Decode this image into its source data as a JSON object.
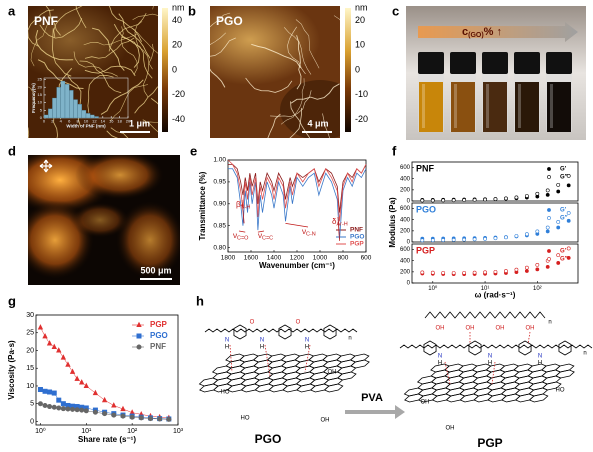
{
  "panels": {
    "a": {
      "label": "a",
      "title": "PNF",
      "colorbar": {
        "unit": "nm",
        "lim": [
          -50,
          50
        ],
        "ticks": [
          40,
          20,
          0,
          -20,
          -40
        ]
      },
      "scale_bar": "1 μm"
    },
    "b": {
      "label": "b",
      "title": "PGO",
      "colorbar": {
        "unit": "nm",
        "lim": [
          -25,
          25
        ],
        "ticks": [
          20,
          10,
          0,
          -10,
          -20
        ]
      },
      "scale_bar": "4 μm"
    },
    "c": {
      "label": "c",
      "arrow_text": {
        "main": "c",
        "sub": "(GO)",
        "tail": "% ↑"
      }
    },
    "d": {
      "label": "d",
      "scale_bar": "500 μm"
    },
    "e": {
      "label": "e"
    },
    "f": {
      "label": "f"
    },
    "g": {
      "label": "g"
    },
    "h": {
      "label": "h",
      "left": "PGO",
      "arrow": "PVA",
      "right": "PGP",
      "atoms": [
        "N",
        "H",
        "O",
        "OH",
        "HO",
        "n"
      ]
    }
  },
  "chart_data": [
    {
      "type": "histogram",
      "xlabel": "Width of PNF (nm)",
      "ylabel": "Frequency(%)",
      "color": "#7fb3c9",
      "bins": [
        0,
        1,
        2,
        3,
        4,
        5,
        6,
        7,
        8,
        9,
        10,
        11,
        12,
        13
      ],
      "values": [
        2,
        6,
        13,
        20,
        24,
        22,
        18,
        12,
        9,
        5,
        3,
        2,
        1
      ],
      "xlim": [
        0,
        20
      ],
      "xticks": [
        0,
        2,
        4,
        6,
        8,
        10,
        12,
        14,
        16,
        18,
        20
      ],
      "ylim": [
        0,
        26
      ],
      "yticks": [
        0,
        5,
        10,
        15,
        20,
        25
      ]
    },
    {
      "type": "line",
      "xlabel": "Wavenumber (cm⁻¹)",
      "ylabel": "Transmittance (%)",
      "legend": "lower right",
      "x": [
        1800,
        1760,
        1720,
        1690,
        1670,
        1650,
        1630,
        1610,
        1590,
        1560,
        1540,
        1520,
        1500,
        1460,
        1420,
        1400,
        1360,
        1320,
        1300,
        1260,
        1240,
        1200,
        1150,
        1100,
        1050,
        1010,
        950,
        900,
        850,
        830,
        800,
        760,
        720,
        680,
        640,
        600
      ],
      "xlim": [
        1800,
        600
      ],
      "xticks": [
        1800,
        1600,
        1400,
        1200,
        1000,
        800,
        600
      ],
      "ylim": [
        0.79,
        1.0
      ],
      "yticks": [
        {
          "value": 0.8,
          "label": "0.80"
        },
        {
          "value": 0.85,
          "label": "0.85"
        },
        {
          "value": 0.9,
          "label": "0.90"
        },
        {
          "value": 0.95,
          "label": "0.95"
        },
        {
          "value": 1.0,
          "label": "1.00"
        }
      ],
      "annotations": [
        {
          "symbol": "β",
          "sub": "N-H"
        },
        {
          "symbol": "ν",
          "sub": "C=O"
        },
        {
          "symbol": "ν",
          "sub": "C=C"
        },
        {
          "symbol": "ν",
          "sub": "C-N"
        },
        {
          "symbol": "δ",
          "sub": "Ar-H"
        }
      ],
      "series": [
        {
          "name": "PNF",
          "color": "#8b1a1a",
          "values": [
            0.99,
            0.99,
            0.98,
            0.95,
            0.92,
            0.96,
            0.93,
            0.97,
            0.94,
            0.97,
            0.9,
            0.95,
            0.93,
            0.97,
            0.95,
            0.93,
            0.97,
            0.95,
            0.91,
            0.96,
            0.94,
            0.97,
            0.96,
            0.97,
            0.98,
            0.95,
            0.98,
            0.97,
            0.94,
            0.88,
            0.95,
            0.97,
            0.96,
            0.98,
            0.97,
            0.99
          ]
        },
        {
          "name": "PGO",
          "color": "#3a78c9",
          "values": [
            0.98,
            0.98,
            0.96,
            0.9,
            0.85,
            0.93,
            0.88,
            0.95,
            0.9,
            0.95,
            0.84,
            0.92,
            0.88,
            0.95,
            0.92,
            0.89,
            0.95,
            0.92,
            0.86,
            0.94,
            0.9,
            0.96,
            0.94,
            0.96,
            0.97,
            0.92,
            0.97,
            0.95,
            0.91,
            0.82,
            0.93,
            0.96,
            0.94,
            0.97,
            0.96,
            0.98
          ]
        },
        {
          "name": "PGP",
          "color": "#e05050",
          "values": [
            1.0,
            0.99,
            0.97,
            0.93,
            0.89,
            0.95,
            0.91,
            0.96,
            0.92,
            0.96,
            0.87,
            0.94,
            0.91,
            0.96,
            0.94,
            0.91,
            0.96,
            0.94,
            0.89,
            0.95,
            0.92,
            0.97,
            0.95,
            0.97,
            0.98,
            0.94,
            0.98,
            0.96,
            0.93,
            0.86,
            0.94,
            0.97,
            0.95,
            0.98,
            0.97,
            0.99
          ]
        }
      ]
    },
    {
      "type": "scatter",
      "title": "PNF",
      "title_color": "#000000",
      "xlog": true,
      "xlim": [
        0.4,
        600
      ],
      "ylim": [
        0,
        700
      ],
      "yticks": [
        0,
        200,
        400,
        600
      ],
      "x": [
        0.63,
        1,
        1.58,
        2.51,
        3.98,
        6.31,
        10,
        15.8,
        25.1,
        39.8,
        63.1,
        100,
        158,
        251,
        398
      ],
      "series": [
        {
          "name": "G′",
          "color": "#000000",
          "filled": true,
          "values": [
            20,
            20,
            22,
            24,
            26,
            28,
            32,
            36,
            42,
            50,
            62,
            80,
            110,
            170,
            280
          ]
        },
        {
          "name": "G″",
          "color": "#000000",
          "filled": false,
          "values": [
            10,
            10,
            12,
            14,
            16,
            20,
            26,
            34,
            46,
            64,
            90,
            130,
            190,
            290,
            450
          ]
        }
      ]
    },
    {
      "type": "scatter",
      "title": "PGO",
      "title_color": "#2f7fd9",
      "ylabel": "Modulus (Pa)",
      "xlog": true,
      "xlim": [
        0.4,
        600
      ],
      "ylim": [
        0,
        700
      ],
      "yticks": [
        0,
        200,
        400,
        600
      ],
      "x": [
        0.63,
        1,
        1.58,
        2.51,
        3.98,
        6.31,
        10,
        15.8,
        25.1,
        39.8,
        63.1,
        100,
        158,
        251,
        398
      ],
      "series": [
        {
          "name": "G′",
          "color": "#2f7fd9",
          "filled": true,
          "values": [
            60,
            60,
            62,
            64,
            66,
            70,
            74,
            80,
            88,
            100,
            118,
            145,
            190,
            260,
            380
          ]
        },
        {
          "name": "G″",
          "color": "#2f7fd9",
          "filled": false,
          "values": [
            30,
            32,
            34,
            38,
            42,
            48,
            56,
            68,
            84,
            108,
            140,
            190,
            260,
            360,
            520
          ]
        }
      ]
    },
    {
      "type": "scatter",
      "title": "PGP",
      "title_color": "#d62020",
      "xlabel": "ω (rad·s⁻¹)",
      "xlog": true,
      "xlim": [
        0.4,
        600
      ],
      "ylim": [
        0,
        700
      ],
      "yticks": [
        0,
        200,
        400,
        600
      ],
      "xticks": [
        {
          "value": 1,
          "label": "10⁰"
        },
        {
          "value": 10,
          "label": "10¹"
        },
        {
          "value": 100,
          "label": "10²"
        }
      ],
      "x": [
        0.63,
        1,
        1.58,
        2.51,
        3.98,
        6.31,
        10,
        15.8,
        25.1,
        39.8,
        63.1,
        100,
        158,
        251,
        398
      ],
      "series": [
        {
          "name": "G′",
          "color": "#d62020",
          "filled": true,
          "values": [
            170,
            165,
            162,
            160,
            160,
            162,
            165,
            170,
            180,
            195,
            215,
            245,
            290,
            360,
            450
          ]
        },
        {
          "name": "G″",
          "color": "#d62020",
          "filled": false,
          "values": [
            190,
            185,
            182,
            180,
            182,
            186,
            192,
            200,
            215,
            240,
            275,
            325,
            400,
            500,
            620
          ]
        }
      ]
    },
    {
      "type": "line",
      "markers": true,
      "xlabel": "Share rate (s⁻¹)",
      "ylabel": "Viscosity (Pa·s)",
      "legend": "upper right",
      "xlog": true,
      "xlim": [
        0.8,
        1000
      ],
      "xticks": [
        {
          "value": 1,
          "label": "10⁰"
        },
        {
          "value": 10,
          "label": "10¹"
        },
        {
          "value": 100,
          "label": "10²"
        },
        {
          "value": 1000,
          "label": "10³"
        }
      ],
      "ylim": [
        -1,
        30
      ],
      "yticks": [
        0,
        5,
        10,
        15,
        20,
        25,
        30
      ],
      "x": [
        1,
        1.26,
        1.58,
        2,
        2.51,
        3.16,
        3.98,
        5.01,
        6.31,
        7.94,
        10,
        15.8,
        25.1,
        39.8,
        63.1,
        100,
        158,
        251,
        398,
        631
      ],
      "series": [
        {
          "name": "PGP",
          "color": "#e03030",
          "marker": "triangle",
          "values": [
            26.5,
            24,
            22,
            21,
            20,
            18,
            16,
            14,
            12,
            11,
            10,
            8,
            6,
            4.5,
            3.5,
            2.5,
            2,
            1.5,
            1.2,
            1
          ]
        },
        {
          "name": "PGO",
          "color": "#2f6fd0",
          "marker": "square",
          "values": [
            9,
            8.5,
            8.3,
            8,
            6,
            5,
            4.5,
            4.3,
            4.2,
            4,
            3.8,
            3.2,
            2.6,
            2.2,
            1.8,
            1.5,
            1.2,
            1,
            0.8,
            0.7
          ]
        },
        {
          "name": "PNF",
          "color": "#666666",
          "marker": "circle",
          "values": [
            5,
            4.5,
            4.2,
            4,
            3.8,
            3.6,
            3.5,
            3.4,
            3.3,
            3.2,
            3,
            2.6,
            2.2,
            1.8,
            1.5,
            1.2,
            1,
            0.8,
            0.7,
            0.6
          ]
        }
      ]
    }
  ]
}
